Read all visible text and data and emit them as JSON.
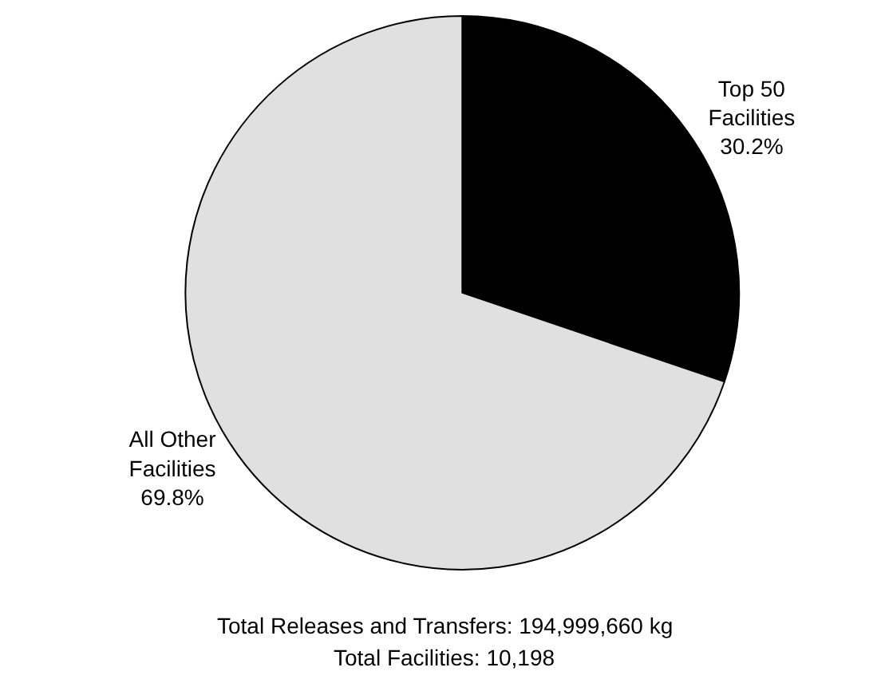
{
  "chart_data": {
    "type": "pie",
    "categories": [
      "Top 50 Facilities",
      "All Other Facilities"
    ],
    "values": [
      30.2,
      69.8
    ],
    "colors": [
      "#000000",
      "#e0e0e0"
    ],
    "value_labels": [
      "30.2%",
      "69.8%"
    ],
    "annotations": [
      "Total Releases and Transfers: 194,999,660 kg",
      "Total Facilities: 10,198"
    ]
  }
}
